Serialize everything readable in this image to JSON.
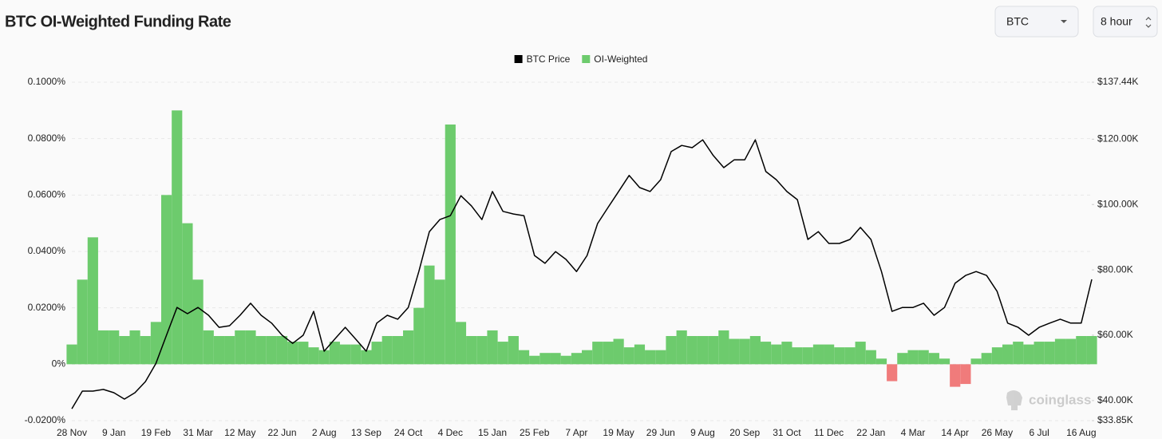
{
  "controls": {
    "coin": "BTC",
    "interval": "8 hour"
  },
  "watermark": "coinglass",
  "chart_data": {
    "type": "bar",
    "title": "BTC OI-Weighted Funding Rate",
    "categories": [
      "28 Nov",
      null,
      null,
      null,
      "9 Jan",
      null,
      null,
      null,
      "19 Feb",
      null,
      null,
      null,
      "31 Mar",
      null,
      null,
      null,
      "12 May",
      null,
      null,
      null,
      "22 Jun",
      null,
      null,
      null,
      "2 Aug",
      null,
      null,
      null,
      "13 Sep",
      null,
      null,
      null,
      "24 Oct",
      null,
      null,
      null,
      "4 Dec",
      null,
      null,
      null,
      "15 Jan",
      null,
      null,
      null,
      "25 Feb",
      null,
      null,
      null,
      "7 Apr",
      null,
      null,
      null,
      "19 May",
      null,
      null,
      null,
      "29 Jun",
      null,
      null,
      null,
      "9 Aug",
      null,
      null,
      null,
      "20 Sep",
      null,
      null,
      null,
      "31 Oct",
      null,
      null,
      null,
      "11 Dec",
      null,
      null,
      null,
      "22 Jan",
      null,
      null,
      null,
      "4 Mar",
      null,
      null,
      null,
      "14 Apr",
      null,
      null,
      null,
      "26 May",
      null,
      null,
      null,
      "6 Jul",
      null,
      null,
      null,
      "16 Aug",
      null
    ],
    "series": [
      {
        "name": "BTC Price",
        "type": "line",
        "axis": "y2",
        "color": "#000000",
        "values": [
          37500,
          42900,
          42900,
          43400,
          42400,
          40450,
          42400,
          45800,
          51400,
          60000,
          68500,
          66600,
          68500,
          66100,
          62400,
          62900,
          66100,
          69800,
          66100,
          63700,
          60000,
          57500,
          60000,
          67300,
          55100,
          58800,
          62400,
          58800,
          55100,
          63700,
          66100,
          64900,
          68500,
          79500,
          91700,
          95400,
          96600,
          102700,
          99600,
          95400,
          104000,
          97900,
          97100,
          96600,
          84400,
          82000,
          85600,
          83200,
          79500,
          84400,
          94200,
          99100,
          104000,
          108900,
          105200,
          104000,
          107600,
          116200,
          118100,
          117400,
          119800,
          115000,
          111300,
          113700,
          113700,
          119800,
          110100,
          107600,
          104000,
          101500,
          89300,
          91700,
          88100,
          88100,
          89300,
          93000,
          89300,
          79500,
          67300,
          68500,
          68500,
          69800,
          66100,
          68500,
          75900,
          78300,
          79500,
          78300,
          73400,
          63700,
          62400,
          60000,
          62400,
          63700,
          64900,
          63700,
          63700,
          77100
        ]
      },
      {
        "name": "OI-Weighted",
        "type": "bar",
        "color": "#6dcb6d",
        "negative_color": "#f07b7b",
        "values": [
          0.007,
          0.03,
          0.045,
          0.012,
          0.012,
          0.01,
          0.012,
          0.01,
          0.015,
          0.06,
          0.09,
          0.05,
          0.03,
          0.012,
          0.01,
          0.01,
          0.012,
          0.012,
          0.01,
          0.01,
          0.01,
          0.008,
          0.008,
          0.006,
          0.005,
          0.008,
          0.007,
          0.007,
          0.005,
          0.008,
          0.01,
          0.01,
          0.012,
          0.02,
          0.035,
          0.03,
          0.085,
          0.015,
          0.01,
          0.01,
          0.012,
          0.008,
          0.01,
          0.005,
          0.003,
          0.004,
          0.004,
          0.003,
          0.004,
          0.005,
          0.008,
          0.008,
          0.009,
          0.006,
          0.007,
          0.005,
          0.005,
          0.01,
          0.012,
          0.01,
          0.01,
          0.01,
          0.012,
          0.009,
          0.009,
          0.01,
          0.008,
          0.007,
          0.008,
          0.006,
          0.006,
          0.007,
          0.007,
          0.006,
          0.006,
          0.008,
          0.005,
          0.002,
          -0.006,
          0.004,
          0.005,
          0.005,
          0.004,
          0.002,
          -0.008,
          -0.007,
          0.002,
          0.004,
          0.006,
          0.007,
          0.008,
          0.007,
          0.008,
          0.008,
          0.009,
          0.009,
          0.01,
          0.01
        ]
      }
    ],
    "ylim": [
      -0.02,
      0.1
    ],
    "yticks": [
      {
        "value": -0.02,
        "label": "-0.0200%"
      },
      {
        "value": 0,
        "label": "0%"
      },
      {
        "value": 0.02,
        "label": "0.0200%"
      },
      {
        "value": 0.04,
        "label": "0.0400%"
      },
      {
        "value": 0.06,
        "label": "0.0600%"
      },
      {
        "value": 0.08,
        "label": "0.0800%"
      },
      {
        "value": 0.1,
        "label": "0.1000%"
      }
    ],
    "y2lim": [
      33850,
      137440
    ],
    "y2ticks": [
      {
        "value": 33850,
        "label": "$33.85K"
      },
      {
        "value": 40000,
        "label": "$40.00K"
      },
      {
        "value": 60000,
        "label": "$60.00K"
      },
      {
        "value": 80000,
        "label": "$80.00K"
      },
      {
        "value": 100000,
        "label": "$100.00K"
      },
      {
        "value": 120000,
        "label": "$120.00K"
      },
      {
        "value": 137440,
        "label": "$137.44K"
      }
    ],
    "grid": true,
    "legend": "top"
  }
}
